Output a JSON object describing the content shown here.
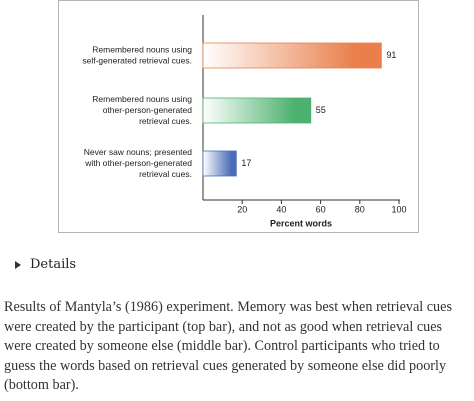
{
  "chart_data": {
    "type": "bar",
    "orientation": "horizontal",
    "categories": [
      [
        "Remembered nouns using",
        "self-generated retrieval cues."
      ],
      [
        "Remembered nouns using",
        "other-person-generated",
        "retrieval cues."
      ],
      [
        "Never saw nouns; presented",
        "with other-person-generated",
        "retrieval cues."
      ]
    ],
    "values": [
      91,
      55,
      17
    ],
    "colors": [
      "#e9804c",
      "#4cb16e",
      "#4b6cb7"
    ],
    "xlabel": "Percent words",
    "xlim": [
      0,
      100
    ],
    "xticks": [
      20,
      40,
      60,
      80,
      100
    ]
  },
  "details": "Details",
  "caption": "Results of Mantyla’s (1986) experiment. Memory was best when retrieval cues were created by the participant (top bar), and not as good when retrieval cues were created by someone else (middle bar). Control participants who tried to guess the words based on retrieval cues generated by someone else did poorly (bottom bar)."
}
